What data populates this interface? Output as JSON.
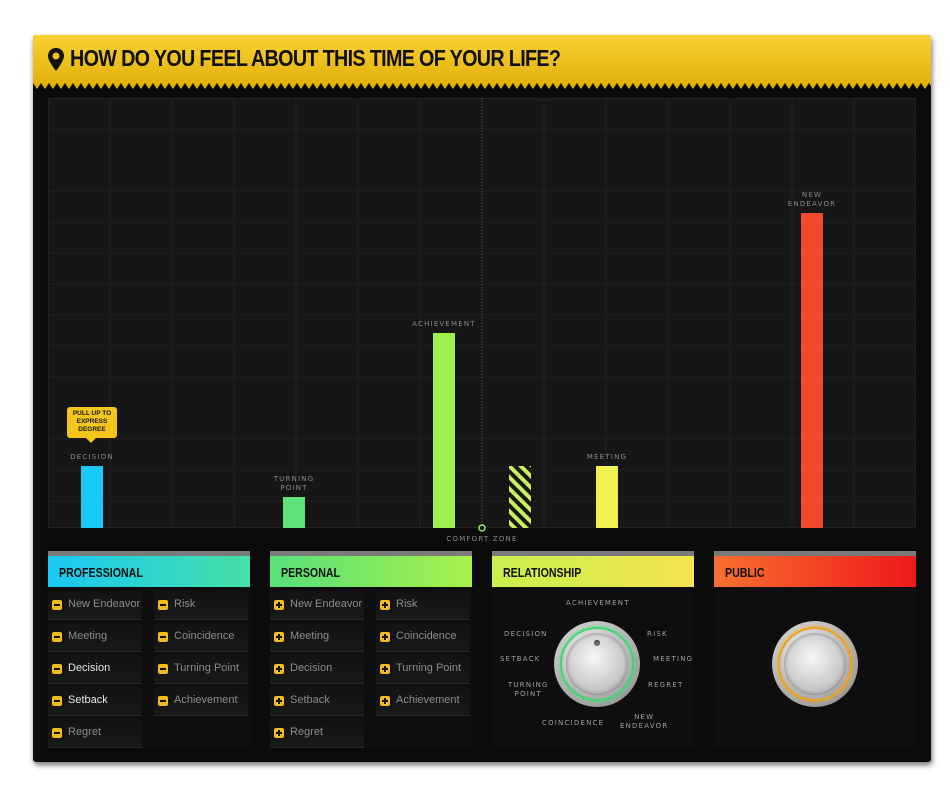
{
  "header": {
    "title": "HOW DO YOU FEEL ABOUT THIS TIME OF YOUR LIFE?"
  },
  "chart_data": {
    "type": "bar",
    "categories": [
      "Decision",
      "Turning Point",
      "Achievement",
      "Comfort Zone",
      "Meeting",
      "New Endeavor"
    ],
    "bar_labels": [
      "DECISION",
      "TURNING\nPOINT",
      "ACHIEVEMENT",
      "",
      "MEETING",
      "NEW\nENDEAVOR"
    ],
    "values": [
      62,
      31,
      195,
      62,
      62,
      315
    ],
    "colors": [
      "#19c8f5",
      "#5fe27a",
      "#9ef04e",
      "#c8f05a",
      "#f0f04e",
      "#f04a2a"
    ],
    "hatched": [
      false,
      false,
      false,
      true,
      false,
      false
    ],
    "comfort_zone_label": "COMFORT ZONE",
    "ylim": [
      0,
      430
    ],
    "grid": true
  },
  "tooltip": {
    "text": "PULL UP TO EXPRESS DEGREE"
  },
  "panels": {
    "professional": {
      "title": "PROFESSIONAL",
      "left": [
        "New Endeavor",
        "Meeting",
        "Decision",
        "Setback",
        "Regret"
      ],
      "right": [
        "Risk",
        "Coincidence",
        "Turning Point",
        "Achievement"
      ]
    },
    "personal": {
      "title": "PERSONAL",
      "left": [
        "New Endeavor",
        "Meeting",
        "Decision",
        "Setback",
        "Regret"
      ],
      "right": [
        "Risk",
        "Coincidence",
        "Turning Point",
        "Achievement"
      ]
    },
    "relationship": {
      "title": "RELATIONSHIP",
      "dial": {
        "achievement": "ACHIEVEMENT",
        "decision": "DECISION",
        "risk": "RISK",
        "setback": "SETBACK",
        "meeting": "MEETING",
        "turning_point": "TURNING\nPOINT",
        "regret": "REGRET",
        "coincidence": "COINCIDENCE",
        "new_endeavor": "NEW\nENDEAVOR"
      }
    },
    "public": {
      "title": "PUBLIC"
    }
  },
  "colors": {
    "header": "#f2c21a",
    "professional": "#19c8f5",
    "personal": "#5fe27a",
    "relationship": "#d8f04e",
    "public": "#f04a2a",
    "relationship_ring": "#3fd870",
    "public_ring": "#f0a21a"
  }
}
